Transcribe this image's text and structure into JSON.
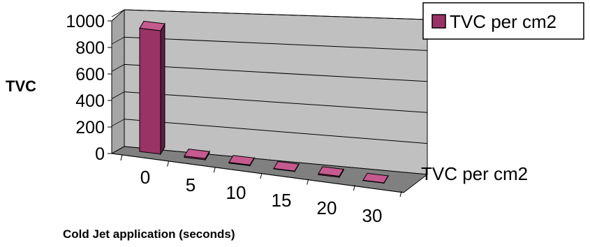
{
  "chart_data": {
    "type": "bar",
    "style": "3d-column",
    "categories": [
      "0",
      "5",
      "10",
      "15",
      "20",
      "30"
    ],
    "series": [
      {
        "name": "TVC per cm2",
        "values": [
          930,
          10,
          5,
          3,
          8,
          2
        ]
      }
    ],
    "xlabel": "Cold Jet application (seconds)",
    "ylabel": "TVC",
    "depth_axis_label": "TVC per cm2",
    "ylim": [
      0,
      1000
    ],
    "yticks": [
      "0",
      "200",
      "400",
      "600",
      "800",
      "1000"
    ],
    "grid": true,
    "legend": {
      "position": "top-right",
      "entries": [
        "TVC per cm2"
      ]
    },
    "colors": {
      "bar_front": "#993366",
      "bar_top": "#c55a8f",
      "bar_side": "#5c1f3e",
      "back_wall": "#c0c0c0",
      "floor": "#808080",
      "gridline": "#000000"
    }
  }
}
